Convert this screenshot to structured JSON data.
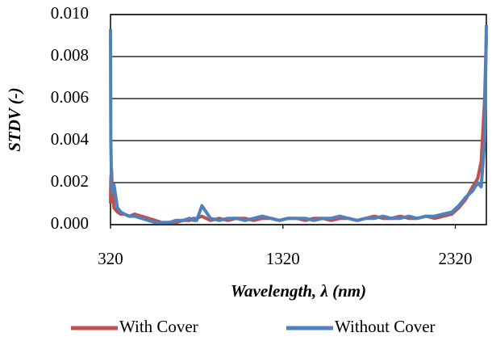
{
  "chart_data": {
    "type": "line",
    "xlabel": "Wavelength, λ (nm)",
    "ylabel": "STDV (-)",
    "x": [
      320,
      322,
      326,
      330,
      340,
      360,
      380,
      400,
      430,
      460,
      500,
      540,
      580,
      620,
      660,
      700,
      740,
      780,
      800,
      810,
      820,
      850,
      900,
      950,
      1000,
      1050,
      1100,
      1150,
      1200,
      1250,
      1300,
      1350,
      1400,
      1450,
      1500,
      1550,
      1600,
      1650,
      1700,
      1750,
      1800,
      1850,
      1900,
      1950,
      2000,
      2050,
      2100,
      2150,
      2200,
      2250,
      2300,
      2340,
      2380,
      2420,
      2450,
      2470,
      2490,
      2500
    ],
    "series": [
      {
        "name": "With Cover",
        "color": "#c0504d",
        "values": [
          0.001,
          0.0022,
          0.0026,
          0.0018,
          0.0008,
          0.0006,
          0.0005,
          0.0005,
          0.0004,
          0.0005,
          0.0004,
          0.0003,
          0.0002,
          0.0001,
          0.0001,
          0.0001,
          0.0002,
          0.0002,
          0.0003,
          0.0002,
          0.0003,
          0.0004,
          0.0002,
          0.0003,
          0.0002,
          0.0003,
          0.0003,
          0.0002,
          0.0003,
          0.0003,
          0.0002,
          0.0003,
          0.0003,
          0.0002,
          0.0003,
          0.0003,
          0.0002,
          0.0003,
          0.0003,
          0.0002,
          0.0003,
          0.0004,
          0.0003,
          0.0003,
          0.0004,
          0.0003,
          0.0003,
          0.0004,
          0.0003,
          0.0004,
          0.0005,
          0.0008,
          0.0012,
          0.0018,
          0.0022,
          0.003,
          0.006,
          0.009
        ]
      },
      {
        "name": "Without Cover",
        "color": "#4f81bd",
        "values": [
          0.0093,
          0.004,
          0.002,
          0.0015,
          0.0019,
          0.0008,
          0.0006,
          0.0005,
          0.0004,
          0.0004,
          0.0003,
          0.0002,
          0.0001,
          0.0001,
          0.0001,
          0.0002,
          0.0002,
          0.0003,
          0.0002,
          0.0003,
          0.0002,
          0.0009,
          0.0003,
          0.0002,
          0.0003,
          0.0003,
          0.0002,
          0.0003,
          0.0004,
          0.0003,
          0.0002,
          0.0003,
          0.0003,
          0.0003,
          0.0002,
          0.0003,
          0.0003,
          0.0004,
          0.0003,
          0.0002,
          0.0003,
          0.0003,
          0.0004,
          0.0003,
          0.0003,
          0.0004,
          0.0003,
          0.0004,
          0.0004,
          0.0005,
          0.0006,
          0.0009,
          0.0013,
          0.0016,
          0.002,
          0.0018,
          0.004,
          0.0095
        ]
      }
    ],
    "xlim": [
      320,
      2500
    ],
    "xticks": [
      320,
      1320,
      2320
    ],
    "ylim": [
      0,
      0.01
    ],
    "yticks": [
      {
        "value": 0,
        "label": "0.000"
      },
      {
        "value": 0.002,
        "label": "0.002"
      },
      {
        "value": 0.004,
        "label": "0.004"
      },
      {
        "value": 0.006,
        "label": "0.006"
      },
      {
        "value": 0.008,
        "label": "0.008"
      },
      {
        "value": 0.01,
        "label": "0.010"
      }
    ],
    "grid": true,
    "legend": "bottom"
  }
}
